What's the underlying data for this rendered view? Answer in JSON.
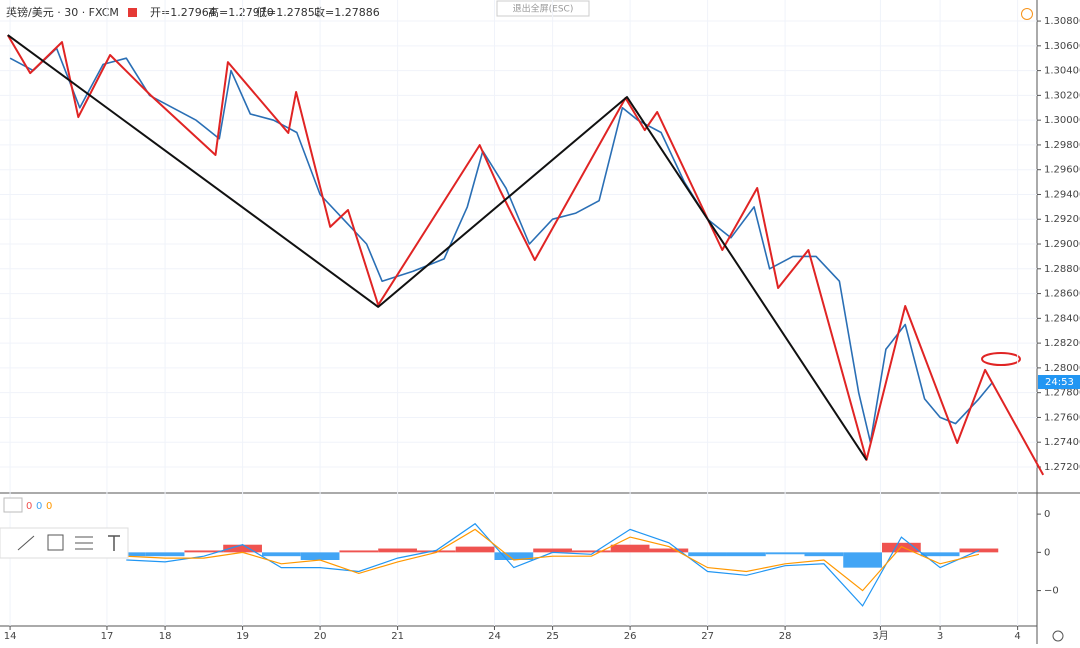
{
  "header": {
    "symbol": "英镑/美元 · 30 · FXCM",
    "open": "开=1.27964",
    "high": "高=1.27970",
    "low": "低=1.27853",
    "close": "收=1.27886",
    "exit_button": "退出全屏(ESC)"
  },
  "chart_data": [
    {
      "type": "line",
      "xlim": [
        -0.13,
        13.25
      ],
      "ylim": [
        1.2699,
        1.3097
      ],
      "grid": true,
      "countdown": "24:53",
      "xticks": [
        {
          "value": 0,
          "label": "14"
        },
        {
          "value": 1.25,
          "label": "17"
        },
        {
          "value": 2,
          "label": "18"
        },
        {
          "value": 3,
          "label": "19"
        },
        {
          "value": 4,
          "label": "20"
        },
        {
          "value": 5,
          "label": "21"
        },
        {
          "value": 6.25,
          "label": "24"
        },
        {
          "value": 7,
          "label": "25"
        },
        {
          "value": 8,
          "label": "26"
        },
        {
          "value": 9,
          "label": "27"
        },
        {
          "value": 10,
          "label": "28"
        },
        {
          "value": 11.23,
          "label": "3月"
        },
        {
          "value": 12,
          "label": "3"
        },
        {
          "value": 13,
          "label": "4"
        }
      ],
      "yticks": [
        {
          "value": 1.308,
          "label": "1.30800"
        },
        {
          "value": 1.306,
          "label": "1.30600"
        },
        {
          "value": 1.304,
          "label": "1.30400"
        },
        {
          "value": 1.302,
          "label": "1.30200"
        },
        {
          "value": 1.3,
          "label": "1.30000"
        },
        {
          "value": 1.298,
          "label": "1.29800"
        },
        {
          "value": 1.296,
          "label": "1.29600"
        },
        {
          "value": 1.294,
          "label": "1.29400"
        },
        {
          "value": 1.292,
          "label": "1.29200"
        },
        {
          "value": 1.29,
          "label": "1.29000"
        },
        {
          "value": 1.288,
          "label": "1.28800"
        },
        {
          "value": 1.286,
          "label": "1.28600"
        },
        {
          "value": 1.284,
          "label": "1.28400"
        },
        {
          "value": 1.282,
          "label": "1.28200"
        },
        {
          "value": 1.28,
          "label": "1.28000"
        },
        {
          "value": 1.278,
          "label": "1.27800"
        },
        {
          "value": 1.276,
          "label": "1.27600"
        },
        {
          "value": 1.274,
          "label": "1.27400"
        },
        {
          "value": 1.272,
          "label": "1.27200"
        }
      ],
      "series": [
        {
          "color": "#2a6fb5",
          "width": 1.6,
          "x": [
            0,
            0.3,
            0.6,
            0.9,
            1.2,
            1.5,
            1.8,
            2.1,
            2.4,
            2.7,
            2.85,
            3.1,
            3.4,
            3.7,
            4.0,
            4.3,
            4.6,
            4.8,
            5.2,
            5.6,
            5.9,
            6.1,
            6.4,
            6.7,
            7.0,
            7.3,
            7.6,
            7.9,
            8.1,
            8.4,
            8.7,
            9.0,
            9.3,
            9.6,
            9.8,
            10.1,
            10.4,
            10.7,
            10.95,
            11.1,
            11.3,
            11.55,
            11.8,
            12.0,
            12.2,
            12.5,
            12.68
          ],
          "values": [
            1.305,
            1.304,
            1.3058,
            1.301,
            1.3045,
            1.305,
            1.302,
            1.301,
            1.3,
            1.2985,
            1.304,
            1.3005,
            1.3,
            1.299,
            1.294,
            1.292,
            1.29,
            1.287,
            1.2878,
            1.2888,
            1.293,
            1.2975,
            1.2945,
            1.29,
            1.292,
            1.2925,
            1.2935,
            1.301,
            1.3,
            1.299,
            1.295,
            1.292,
            1.2905,
            1.293,
            1.288,
            1.289,
            1.289,
            1.287,
            1.278,
            1.274,
            1.2815,
            1.2835,
            1.2775,
            1.276,
            1.2755,
            1.2775,
            1.27886
          ]
        },
        {
          "color": "#e02424",
          "width": 2,
          "x": [
            -0.03,
            0.26,
            0.67,
            0.88,
            1.29,
            1.81,
            2.65,
            2.81,
            3.59,
            3.69,
            4.13,
            4.36,
            4.75,
            6.06,
            6.32,
            6.77,
            7.94,
            8.19,
            8.35,
            9.19,
            9.64,
            9.91,
            10.3,
            11.05,
            11.55,
            12.22,
            12.58,
            13.33
          ],
          "values": [
            1.30687,
            1.3038,
            1.3063,
            1.30025,
            1.30526,
            1.30203,
            1.29719,
            1.30469,
            1.29896,
            1.30227,
            1.29138,
            1.29275,
            1.28508,
            1.29799,
            1.29436,
            1.28871,
            1.30179,
            1.2992,
            1.30066,
            1.28952,
            1.29452,
            1.28645,
            1.28952,
            1.27257,
            1.285,
            1.27394,
            1.27984,
            1.27136
          ]
        },
        {
          "color": "#111111",
          "width": 2,
          "x": [
            -0.03,
            4.75,
            7.96,
            11.05
          ],
          "values": [
            1.30687,
            1.28492,
            1.30187,
            1.27257
          ]
        }
      ]
    },
    {
      "type": "macd",
      "xlim": [
        -0.13,
        13.25
      ],
      "ylim": [
        -0.0038,
        0.003
      ],
      "legend": [
        "0",
        "0",
        "0"
      ],
      "up_color": "#ef5350",
      "down_color": "#42a5f5",
      "yticks": [
        {
          "value": 0.002,
          "label": "0"
        },
        {
          "value": 0,
          "label": "0"
        },
        {
          "value": -0.002,
          "label": "−0"
        }
      ],
      "x": [
        1.5,
        2,
        2.5,
        3,
        3.5,
        4,
        4.5,
        5,
        5.5,
        6,
        6.5,
        7,
        7.5,
        8,
        8.5,
        9,
        9.5,
        10,
        10.5,
        11,
        11.5,
        12,
        12.5
      ],
      "histogram": [
        -0.0002,
        -0.0002,
        0.0001,
        0.0004,
        -0.0002,
        -0.0004,
        0.0001,
        0.0002,
        0.0001,
        0.0003,
        -0.0004,
        0.0002,
        0.0001,
        0.0004,
        0.0002,
        -0.0002,
        -0.0002,
        -0.0001,
        -0.0002,
        -0.0008,
        0.0005,
        -0.0002,
        0.0002
      ],
      "series": [
        {
          "color": "#2196f3",
          "values": [
            -0.0004,
            -0.0005,
            -0.0002,
            0.0004,
            -0.0008,
            -0.0008,
            -0.001,
            -0.0003,
            0.0001,
            0.0015,
            -0.0008,
            0,
            -0.0001,
            0.0012,
            0.0005,
            -0.001,
            -0.0012,
            -0.0007,
            -0.0006,
            -0.0028,
            0.0008,
            -0.0008,
            0.0001
          ]
        },
        {
          "color": "#ff9800",
          "values": [
            -0.0002,
            -0.0003,
            -0.0003,
            0,
            -0.0006,
            -0.0004,
            -0.0011,
            -0.0005,
            0,
            0.0012,
            -0.0004,
            -0.0002,
            -0.0002,
            0.0008,
            0.0003,
            -0.0008,
            -0.001,
            -0.0006,
            -0.0004,
            -0.002,
            0.0003,
            -0.0006,
            -0.0001
          ]
        }
      ]
    }
  ]
}
